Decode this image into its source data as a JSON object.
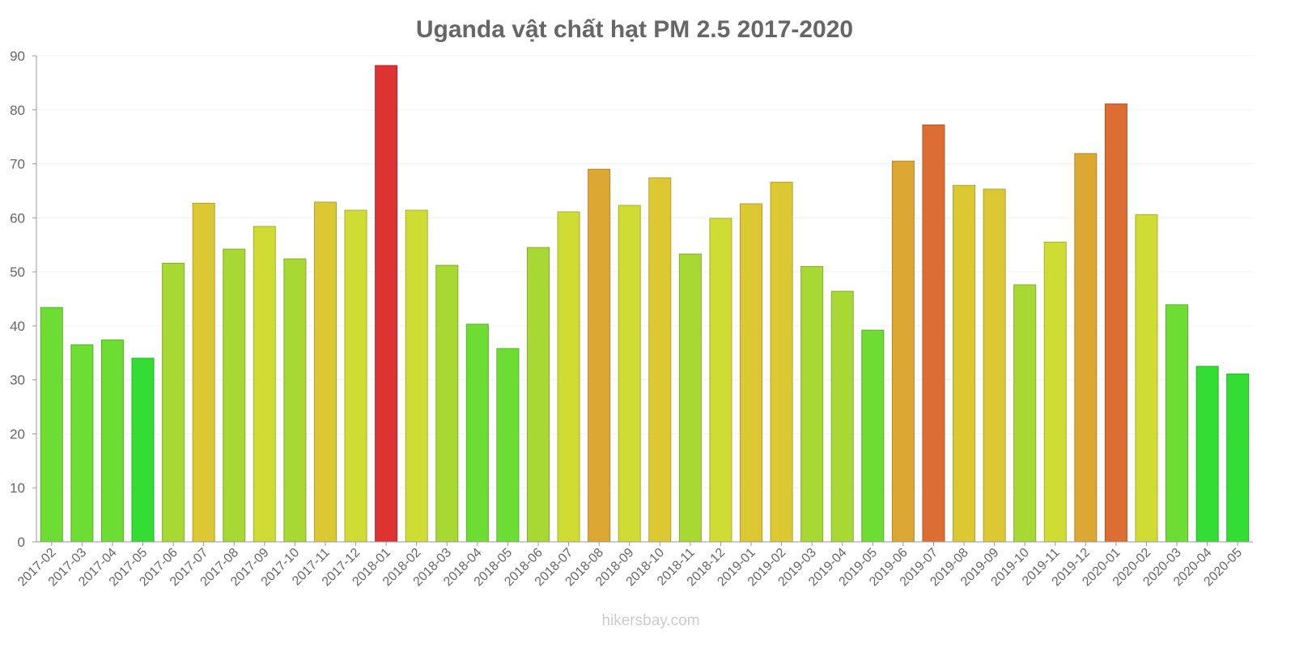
{
  "chart_data": {
    "type": "bar",
    "title": "Uganda vật chất hạt PM 2.5 2017-2020",
    "xlabel": "",
    "ylabel": "",
    "ylim": [
      0,
      90
    ],
    "yticks": [
      "0",
      "10",
      "20",
      "30",
      "40",
      "50",
      "60",
      "70",
      "80",
      "90"
    ],
    "grid": true,
    "categories": [
      "2017-02",
      "2017-03",
      "2017-04",
      "2017-05",
      "2017-06",
      "2017-07",
      "2017-08",
      "2017-09",
      "2017-10",
      "2017-11",
      "2017-12",
      "2018-01",
      "2018-02",
      "2018-03",
      "2018-04",
      "2018-05",
      "2018-06",
      "2018-07",
      "2018-08",
      "2018-09",
      "2018-10",
      "2018-11",
      "2018-12",
      "2019-01",
      "2019-02",
      "2019-03",
      "2019-04",
      "2019-05",
      "2019-06",
      "2019-07",
      "2019-08",
      "2019-09",
      "2019-10",
      "2019-11",
      "2019-12",
      "2020-01",
      "2020-02",
      "2020-03",
      "2020-04",
      "2020-05"
    ],
    "values": [
      43.4,
      36.5,
      37.4,
      34.0,
      51.6,
      62.7,
      54.2,
      58.4,
      52.4,
      62.9,
      61.4,
      88.2,
      61.4,
      51.2,
      40.3,
      35.8,
      54.5,
      61.1,
      69.0,
      62.3,
      67.4,
      53.3,
      59.9,
      62.6,
      66.6,
      51.0,
      46.4,
      39.2,
      70.5,
      77.2,
      66.0,
      65.3,
      47.6,
      55.5,
      71.9,
      81.1,
      60.6,
      43.9,
      32.5,
      31.1
    ],
    "color_scale": [
      "#33dd33",
      "#6edd33",
      "#a8d833",
      "#cfdc33",
      "#dcc833",
      "#dca833",
      "#dd6e33",
      "#dd3333"
    ]
  },
  "watermark": "hikersbay.com"
}
